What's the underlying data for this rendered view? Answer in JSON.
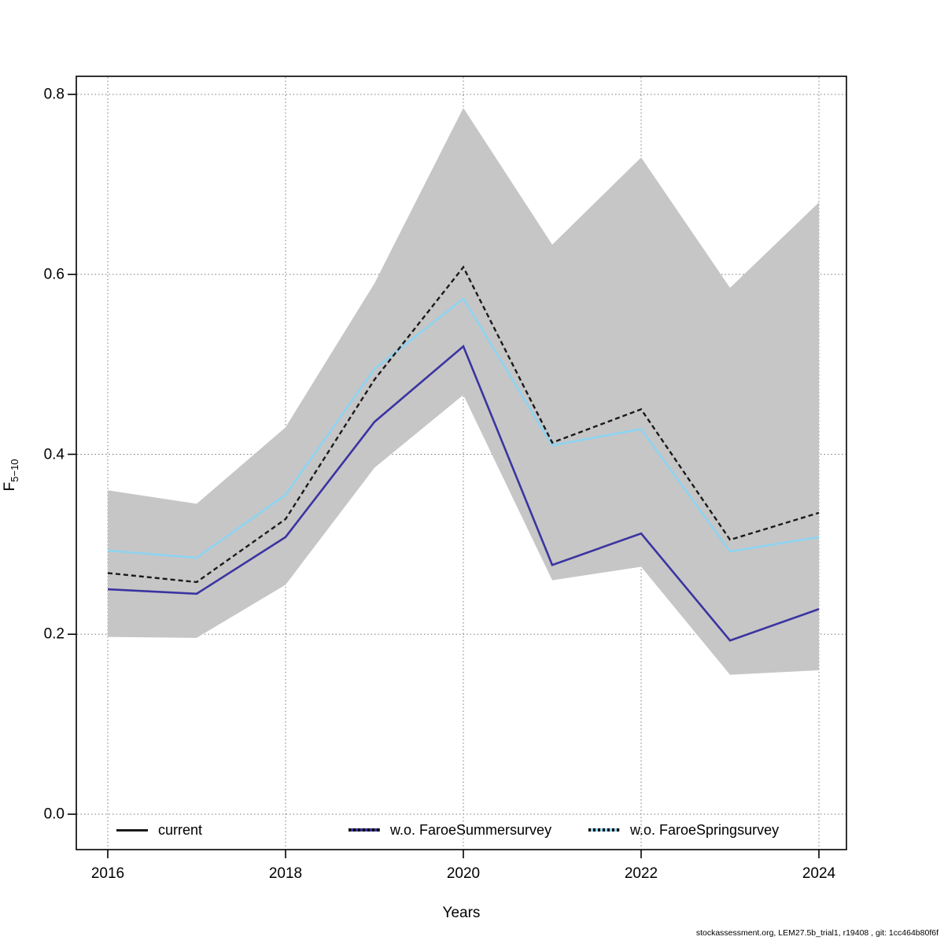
{
  "footer": "stockassessment.org, LEM27.5b_trial1, r19408 , git: 1cc464b80f6f",
  "axes": {
    "xlabel": "Years",
    "ylabel": "F5-10",
    "ylabel_main": "F",
    "ylabel_sub": "5−10"
  },
  "legend": {
    "position": "bottom-inside",
    "items": [
      {
        "label": "current",
        "line_color": "#1a1a1a",
        "overlay": "none"
      },
      {
        "label": "w.o. FaroeSummersurvey",
        "line_color": "#3b34a1",
        "overlay": "dotted-black"
      },
      {
        "label": "w.o. FaroeSpringsurvey",
        "line_color": "#8dd4f2",
        "overlay": "dotted-black"
      }
    ]
  },
  "chart_data": {
    "type": "line",
    "title": "",
    "xlabel": "Years",
    "ylabel": "F5-10",
    "x": [
      2016,
      2017,
      2018,
      2019,
      2020,
      2021,
      2022,
      2023,
      2024
    ],
    "series": [
      {
        "name": "current",
        "color": "#1a1a1a",
        "line_style": "dashed",
        "values": [
          0.268,
          0.258,
          0.328,
          0.483,
          0.608,
          0.413,
          0.45,
          0.305,
          0.335
        ]
      },
      {
        "name": "w.o. FaroeSummersurvey",
        "color": "#3b34a1",
        "line_style": "solid",
        "values": [
          0.25,
          0.245,
          0.308,
          0.436,
          0.52,
          0.277,
          0.312,
          0.193,
          0.228
        ]
      },
      {
        "name": "w.o. FaroeSpringsurvey",
        "color": "#8dd4f2",
        "line_style": "solid",
        "values": [
          0.293,
          0.285,
          0.355,
          0.495,
          0.573,
          0.41,
          0.428,
          0.292,
          0.308
        ]
      }
    ],
    "band": {
      "name": "current 95% confidence band",
      "color": "#c6c6c6",
      "upper": [
        0.36,
        0.345,
        0.43,
        0.59,
        0.785,
        0.633,
        0.73,
        0.585,
        0.68
      ],
      "lower": [
        0.197,
        0.196,
        0.255,
        0.385,
        0.466,
        0.26,
        0.275,
        0.155,
        0.16
      ]
    },
    "xlim": [
      2016,
      2024
    ],
    "ylim": [
      0.0,
      0.8
    ],
    "xticks": [
      "2016",
      "2018",
      "2020",
      "2022",
      "2024"
    ],
    "xtick_values": [
      2016,
      2018,
      2020,
      2022,
      2024
    ],
    "yticks": [
      "0.0",
      "0.2",
      "0.4",
      "0.6",
      "0.8"
    ],
    "ytick_values": [
      0.0,
      0.2,
      0.4,
      0.6,
      0.8
    ],
    "grid": "dotted",
    "legend_position": "bottom-inside"
  }
}
